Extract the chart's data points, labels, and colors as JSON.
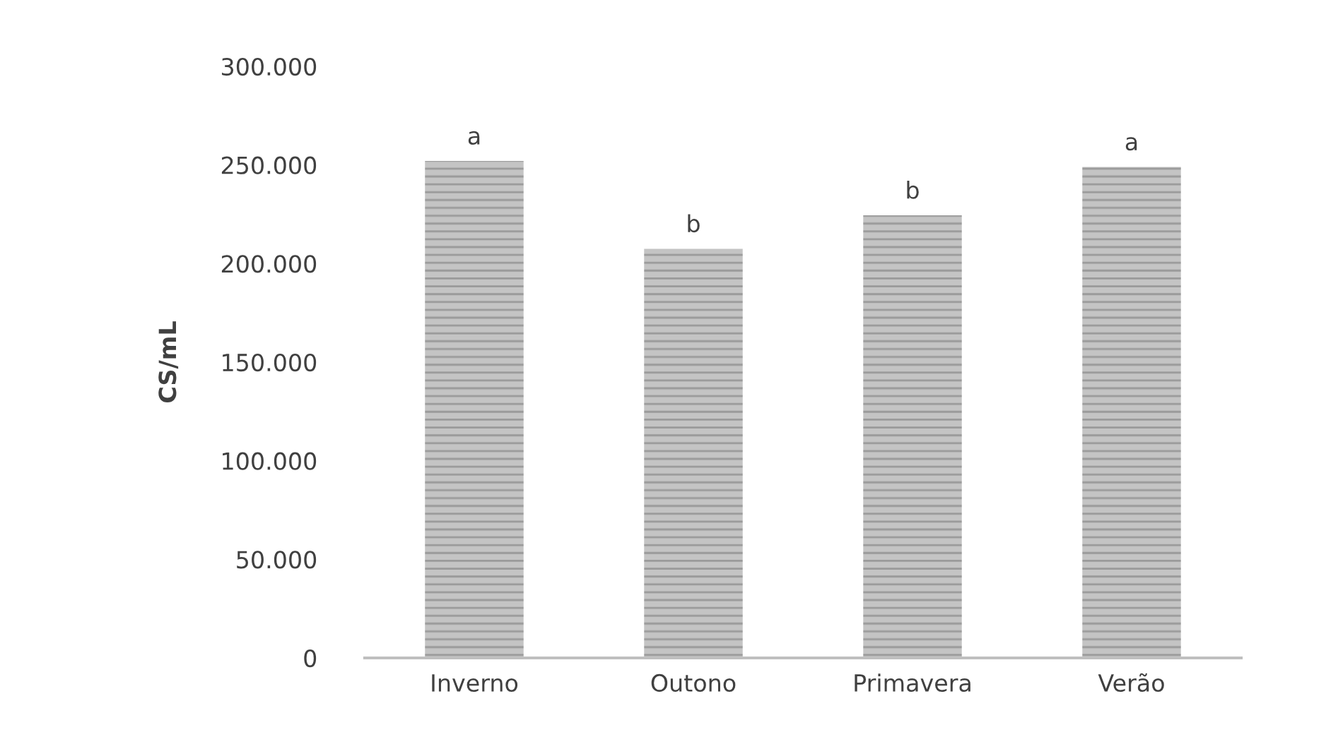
{
  "chart_data": {
    "type": "bar",
    "ylabel": "CS/mL",
    "categories": [
      "Inverno",
      "Outono",
      "Primavera",
      "Verão"
    ],
    "values": [
      252000,
      207500,
      224500,
      249000
    ],
    "value_labels": [
      "a",
      "b",
      "b",
      "a"
    ],
    "color": "#c4c4c4",
    "ylim": [
      0,
      300000
    ],
    "yticks": [
      {
        "value": 0,
        "label": "0"
      },
      {
        "value": 50000,
        "label": "50.000"
      },
      {
        "value": 100000,
        "label": "100.000"
      },
      {
        "value": 150000,
        "label": "150.000"
      },
      {
        "value": 200000,
        "label": "200.000"
      },
      {
        "value": 250000,
        "label": "250.000"
      },
      {
        "value": 300000,
        "label": "300.000"
      }
    ],
    "grid": false,
    "legend": false
  }
}
